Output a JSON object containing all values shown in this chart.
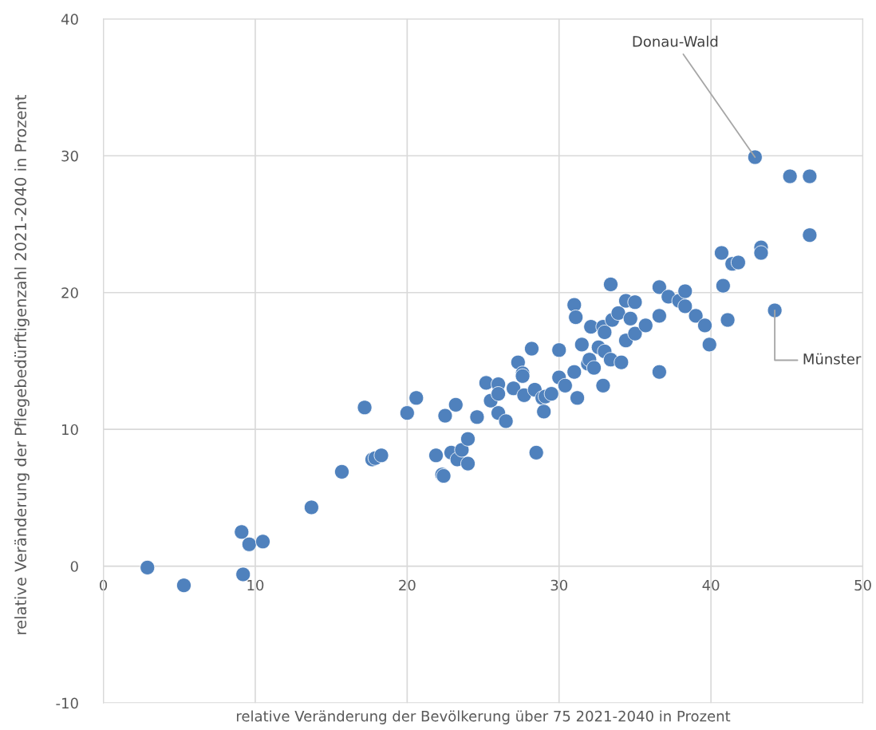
{
  "chart_data": {
    "type": "scatter",
    "xlabel": "relative Veränderung der Bevölkerung über 75 2021-2040 in Prozent",
    "ylabel": "relative Veränderung der Pflegebedürftigenzahl 2021-2040 in Prozent",
    "xlim": [
      0,
      50
    ],
    "xticks": [
      0,
      10,
      20,
      30,
      40,
      50
    ],
    "ylim": [
      -10,
      40
    ],
    "yticks": [
      -10,
      0,
      10,
      20,
      30,
      40
    ],
    "grid": true,
    "marker": "circle",
    "series": [
      {
        "color": "#4f81bd",
        "x": [
          2.9,
          5.3,
          9.1,
          9.6,
          10.5,
          9.2,
          13.7,
          15.7,
          17.2,
          17.7,
          17.9,
          18.3,
          20.0,
          20.6,
          21.9,
          22.5,
          22.3,
          22.4,
          22.9,
          23.2,
          23.3,
          23.6,
          24.0,
          24.0,
          24.6,
          25.2,
          25.5,
          26.0,
          26.0,
          26.0,
          26.5,
          27.0,
          27.3,
          27.6,
          27.6,
          27.7,
          28.2,
          28.4,
          28.5,
          28.9,
          29.0,
          29.1,
          29.5,
          30.0,
          30.0,
          30.4,
          31.0,
          31.0,
          31.1,
          31.2,
          31.5,
          31.9,
          32.0,
          32.1,
          32.3,
          32.6,
          32.9,
          32.9,
          33.0,
          33.0,
          33.4,
          33.4,
          33.5,
          33.9,
          34.1,
          34.4,
          34.4,
          34.7,
          35.0,
          35.0,
          35.7,
          36.6,
          36.6,
          36.6,
          37.2,
          37.9,
          38.3,
          38.3,
          39.0,
          39.6,
          39.9,
          40.7,
          40.8,
          41.1,
          41.4,
          41.8,
          43.3,
          43.3,
          44.2,
          42.9,
          45.2,
          46.5,
          46.5
        ],
        "values": [
          -0.1,
          -1.4,
          2.5,
          1.6,
          1.8,
          -0.6,
          4.3,
          6.9,
          11.6,
          7.8,
          7.9,
          8.1,
          11.2,
          12.3,
          8.1,
          11.0,
          6.7,
          6.6,
          8.3,
          11.8,
          7.8,
          8.5,
          9.3,
          7.5,
          10.9,
          13.4,
          12.1,
          13.3,
          12.6,
          11.2,
          10.6,
          13.0,
          14.9,
          14.1,
          13.9,
          12.5,
          15.9,
          12.9,
          8.3,
          12.3,
          11.3,
          12.4,
          12.6,
          13.8,
          15.8,
          13.2,
          14.2,
          19.1,
          18.2,
          12.3,
          16.2,
          14.8,
          15.1,
          17.5,
          14.5,
          16.0,
          13.2,
          17.5,
          17.1,
          15.7,
          15.1,
          20.6,
          18.0,
          18.5,
          14.9,
          19.4,
          16.5,
          18.1,
          19.3,
          17.0,
          17.6,
          20.4,
          14.2,
          18.3,
          19.7,
          19.4,
          20.1,
          19.0,
          18.3,
          17.6,
          16.2,
          22.9,
          20.5,
          18.0,
          22.1,
          22.2,
          23.3,
          22.9,
          18.7,
          29.9,
          28.5,
          28.5,
          24.2
        ]
      }
    ],
    "annotations": [
      {
        "text": "Donau-Wald",
        "x": 42.9,
        "y": 29.9
      },
      {
        "text": "Münster",
        "x": 44.2,
        "y": 18.7
      }
    ]
  }
}
